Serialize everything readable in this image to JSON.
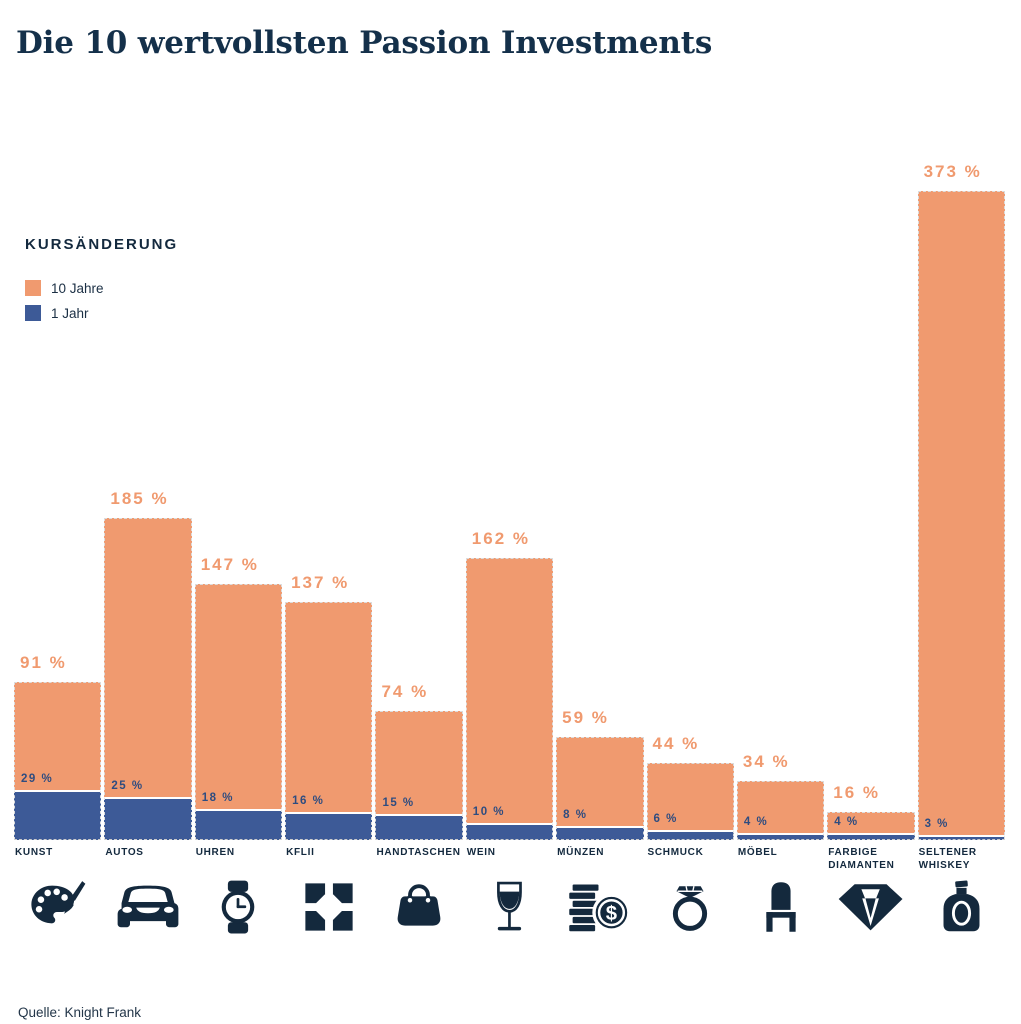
{
  "page": {
    "title": "Die 10 wertvollsten Passion Investments",
    "source": "Quelle: Knight Frank"
  },
  "legend": {
    "heading": "KURSÄNDERUNG",
    "items": [
      {
        "label": "10 Jahre",
        "color": "#F09A6F"
      },
      {
        "label": "1 Jahr",
        "color": "#3D5A97"
      }
    ]
  },
  "colors": {
    "background": "#FFFFFF",
    "orange": "#F09A6F",
    "blue": "#3D5A97",
    "navy": "#14293D",
    "blue_value_label": "#2E4C80",
    "category_label": "#13293E",
    "title": "#14304A"
  },
  "chart_data": {
    "type": "bar",
    "title": "Die 10 wertvollsten Passion Investments",
    "unit": "%",
    "ylim": [
      0,
      400
    ],
    "grid": false,
    "legend_position": "left-middle",
    "categories": [
      "KUNST",
      "AUTOS",
      "UHREN",
      "KFLII",
      "HANDTASCHEN",
      "WEIN",
      "MÜNZEN",
      "SCHMUCK",
      "MÖBEL",
      "FARBIGE DIAMANTEN",
      "SELTENER WHISKEY"
    ],
    "series": [
      {
        "name": "10 Jahre",
        "color": "#F09A6F",
        "values": [
          91,
          185,
          147,
          137,
          74,
          162,
          59,
          44,
          34,
          16,
          373
        ]
      },
      {
        "name": "1 Jahr",
        "color": "#3D5A97",
        "values": [
          29,
          25,
          18,
          16,
          15,
          10,
          8,
          6,
          4,
          4,
          3
        ]
      }
    ],
    "value_labels": {
      "10 Jahre": [
        "91 %",
        "185 %",
        "147 %",
        "137 %",
        "74 %",
        "162 %",
        "59 %",
        "44 %",
        "34 %",
        "16 %",
        "373 %"
      ],
      "1 Jahr": [
        "29 %",
        "25 %",
        "18 %",
        "16 %",
        "15 %",
        "10 %",
        "8 %",
        "6 %",
        "4 %",
        "4 %",
        "3 %"
      ]
    },
    "icons": [
      "palette-icon",
      "car-icon",
      "watch-icon",
      "kflii-icon",
      "handbag-icon",
      "wine-glass-icon",
      "coins-icon",
      "ring-icon",
      "chair-icon",
      "diamond-icon",
      "whiskey-bottle-icon"
    ]
  }
}
